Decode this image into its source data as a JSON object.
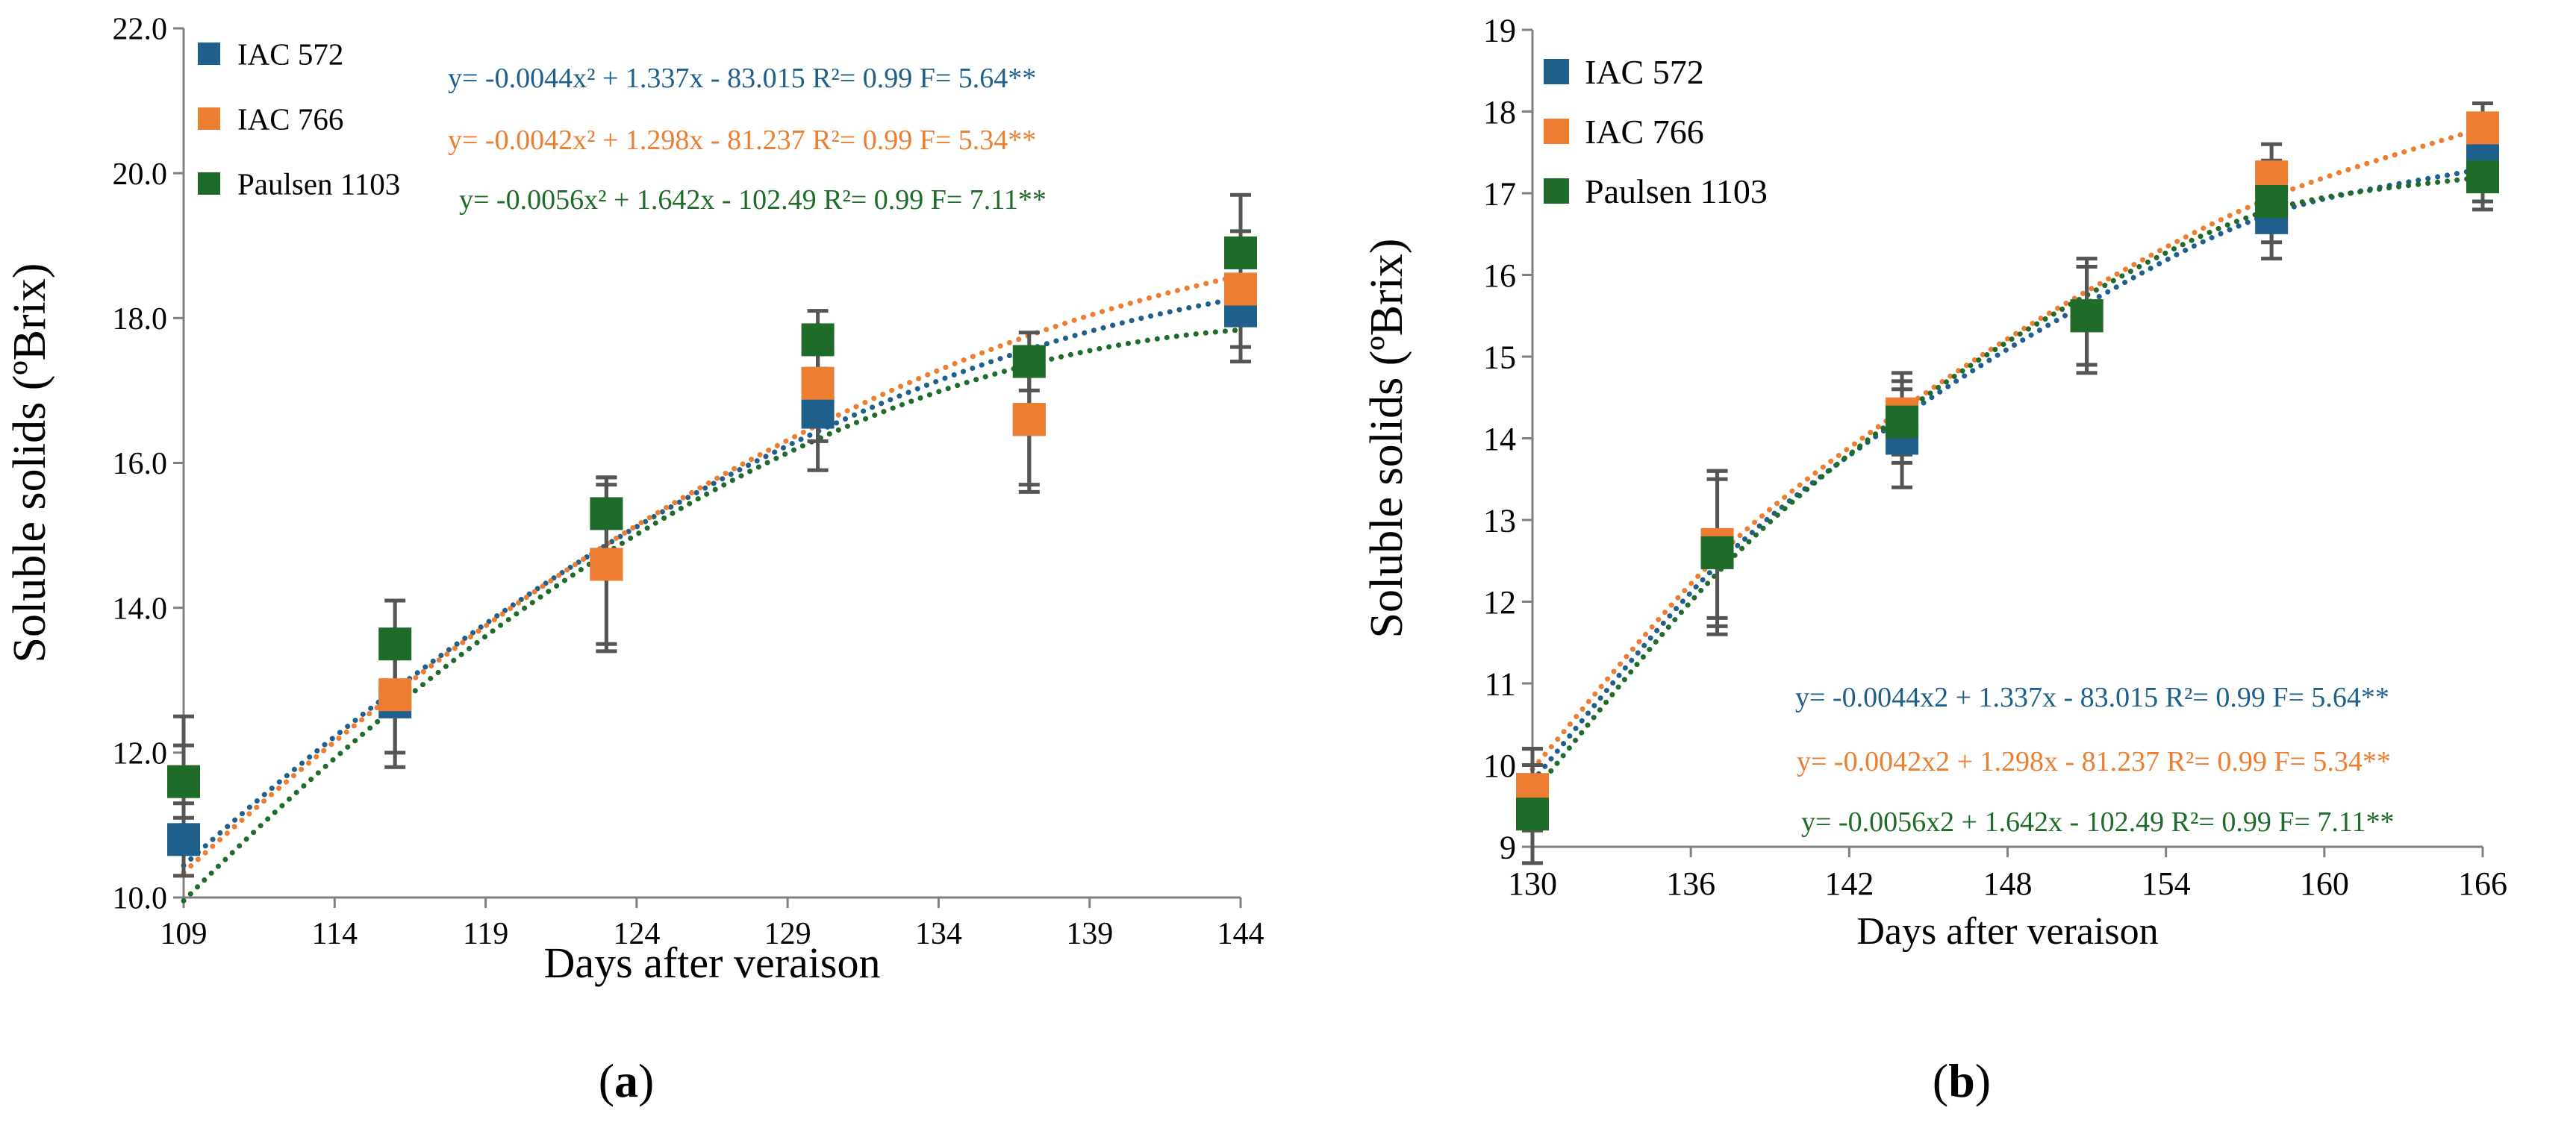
{
  "colors": {
    "iac572": "#1F5F8B",
    "iac766": "#ED7D31",
    "paulsen": "#1E6B2A",
    "axis": "#808080",
    "errbar": "#555555"
  },
  "panels": [
    {
      "id": "a",
      "label_prefix": "(",
      "label_letter": "a",
      "label_suffix": ")",
      "chart_data": {
        "type": "scatter",
        "xlabel": "Days after veraison",
        "ylabel": "Soluble solids (ºBrix)",
        "xlim": [
          109,
          144
        ],
        "ylim": [
          10.0,
          22.0
        ],
        "x_ticks": [
          "109",
          "114",
          "119",
          "124",
          "129",
          "134",
          "139",
          "144"
        ],
        "y_ticks": [
          "10.0",
          "12.0",
          "14.0",
          "16.0",
          "18.0",
          "20.0",
          "22.0"
        ],
        "y_tick_values": [
          10,
          12,
          14,
          16,
          18,
          20,
          22
        ],
        "x_tick_values": [
          109,
          114,
          119,
          124,
          129,
          134,
          139,
          144
        ],
        "legend": "top-left",
        "trendlines": "dotted quadratic",
        "series": [
          {
            "name": "IAC 572",
            "color_key": "iac572",
            "x": [
              109,
              116,
              123,
              130,
              137,
              144
            ],
            "y": [
              10.8,
              12.7,
              14.6,
              16.7,
              16.6,
              18.1
            ],
            "err": [
              0.5,
              0.9,
              1.2,
              0.8,
              0.9,
              0.7
            ],
            "coef": [
              -0.0044,
              1.337,
              -83.015
            ],
            "equation": "y= -0.0044x² + 1.337x - 83.015 R²= 0.99 F= 5.64**"
          },
          {
            "name": "IAC 766",
            "color_key": "iac766",
            "x": [
              109,
              116,
              123,
              130,
              137,
              144
            ],
            "y": [
              11.6,
              12.8,
              14.6,
              17.1,
              16.6,
              18.4
            ],
            "err": [
              0.5,
              0.8,
              1.1,
              0.8,
              1.0,
              0.8
            ],
            "coef": [
              -0.0042,
              1.298,
              -81.237
            ],
            "equation": "y= -0.0042x² + 1.298x - 81.237 R²= 0.99 F= 5.34**"
          },
          {
            "name": "Paulsen 1103",
            "color_key": "paulsen",
            "x": [
              109,
              116,
              123,
              130,
              137,
              144
            ],
            "y": [
              11.6,
              13.5,
              15.3,
              17.7,
              17.4,
              18.9
            ],
            "err": [
              0.9,
              0.6,
              0.5,
              0.4,
              0.4,
              0.8
            ],
            "coef": [
              -0.0056,
              1.642,
              -102.49
            ],
            "equation": "y= -0.0056x² + 1.642x - 102.49 R²= 0.99 F= 7.11**"
          }
        ]
      }
    },
    {
      "id": "b",
      "label_prefix": "(",
      "label_letter": "b",
      "label_suffix": ")",
      "chart_data": {
        "type": "scatter",
        "xlabel": "Days after veraison",
        "ylabel": "Soluble solids (ºBrix)",
        "xlim": [
          130,
          166
        ],
        "ylim": [
          9,
          19
        ],
        "x_ticks": [
          "130",
          "136",
          "142",
          "148",
          "154",
          "160",
          "166"
        ],
        "y_ticks": [
          "9",
          "10",
          "11",
          "12",
          "13",
          "14",
          "15",
          "16",
          "17",
          "18",
          "19"
        ],
        "y_tick_values": [
          9,
          10,
          11,
          12,
          13,
          14,
          15,
          16,
          17,
          18,
          19
        ],
        "x_tick_values": [
          130,
          136,
          142,
          148,
          154,
          160,
          166
        ],
        "legend": "top-left",
        "trendlines": "dotted quadratic",
        "series": [
          {
            "name": "IAC 572",
            "color_key": "iac572",
            "x": [
              130,
              137,
              144,
              151,
              158,
              166
            ],
            "y": [
              9.7,
              12.6,
              14.0,
              15.5,
              16.7,
              17.4
            ],
            "err": [
              0.5,
              1.0,
              0.6,
              0.7,
              0.5,
              0.5
            ],
            "fit": [
              9.8,
              12.45,
              14.25,
              15.65,
              16.75,
              17.3
            ],
            "equation": "y= -0.0044x2 + 1.337x - 83.015 R²= 0.99 F= 5.64**"
          },
          {
            "name": "IAC 766",
            "color_key": "iac766",
            "x": [
              130,
              137,
              144,
              151,
              158,
              166
            ],
            "y": [
              9.7,
              12.7,
              14.3,
              15.5,
              17.2,
              17.8
            ],
            "err": [
              0.5,
              0.9,
              0.5,
              0.6,
              0.4,
              0.3
            ],
            "fit": [
              9.95,
              12.55,
              14.35,
              15.8,
              16.95,
              17.8
            ],
            "equation": "y= -0.0042x2 + 1.298x - 81.237 R²= 0.99 F= 5.34**"
          },
          {
            "name": "Paulsen 1103",
            "color_key": "paulsen",
            "x": [
              130,
              137,
              144,
              151,
              158,
              166
            ],
            "y": [
              9.4,
              12.6,
              14.2,
              15.5,
              16.9,
              17.2
            ],
            "err": [
              0.6,
              0.9,
              0.5,
              0.6,
              0.5,
              0.4
            ],
            "fit": [
              9.65,
              12.35,
              14.3,
              15.75,
              16.8,
              17.2
            ],
            "equation": "y= -0.0056x2 + 1.642x - 102.49 R²= 0.99 F= 7.11**"
          }
        ]
      }
    }
  ]
}
